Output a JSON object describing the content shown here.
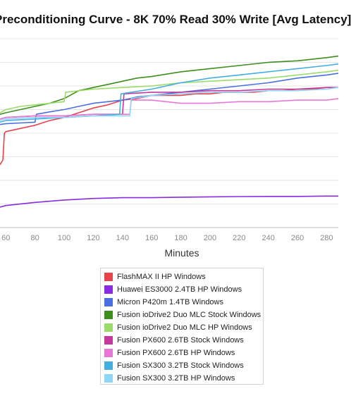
{
  "chart_data": {
    "type": "line",
    "title": "Preconditioning Curve - 8K 70% Read 30% Write [Avg Latency]",
    "xlabel": "Minutes",
    "ylabel": "",
    "xlim": [
      56,
      288
    ],
    "x_ticks": [
      60,
      80,
      100,
      120,
      140,
      160,
      180,
      200,
      220,
      240,
      260,
      280
    ],
    "x_tick_labels": [
      "60",
      "80",
      "100",
      "120",
      "140",
      "160",
      "180",
      "200",
      "220",
      "240",
      "260",
      "280"
    ],
    "grid": "horizontal",
    "legend_position": "bottom-center",
    "series": [
      {
        "name": "FlashMAX II HP Windows",
        "color": "#e8424b",
        "x": [
          56,
          58,
          59,
          60,
          70,
          80,
          90,
          100,
          110,
          120,
          130,
          140,
          150,
          160,
          170,
          180,
          190,
          200,
          210,
          220,
          230,
          240,
          250,
          260,
          270,
          280,
          288
        ],
        "y": [
          0.4,
          0.43,
          0.6,
          0.61,
          0.63,
          0.65,
          0.68,
          0.7,
          0.73,
          0.76,
          0.78,
          0.81,
          0.82,
          0.84,
          0.84,
          0.84,
          0.85,
          0.85,
          0.86,
          0.86,
          0.86,
          0.87,
          0.87,
          0.88,
          0.88,
          0.89,
          0.89
        ]
      },
      {
        "name": "Huawei ES3000 2.4TB HP Windows",
        "color": "#8a2be2",
        "x": [
          56,
          60,
          80,
          100,
          120,
          140,
          160,
          180,
          200,
          220,
          240,
          260,
          280,
          288
        ],
        "y": [
          0.13,
          0.14,
          0.16,
          0.175,
          0.185,
          0.19,
          0.19,
          0.193,
          0.195,
          0.197,
          0.198,
          0.198,
          0.2,
          0.2
        ]
      },
      {
        "name": "Micron P420m 1.4TB Windows",
        "color": "#4a6fe3",
        "x": [
          56,
          60,
          70,
          80,
          81,
          90,
          100,
          110,
          120,
          130,
          140,
          150,
          160,
          180,
          200,
          220,
          240,
          260,
          280,
          288
        ],
        "y": [
          0.655,
          0.66,
          0.665,
          0.67,
          0.72,
          0.735,
          0.75,
          0.77,
          0.79,
          0.8,
          0.81,
          0.83,
          0.84,
          0.86,
          0.88,
          0.9,
          0.92,
          0.95,
          0.97,
          0.98
        ]
      },
      {
        "name": "Fusion ioDrive2 Duo MLC Stock Windows",
        "color": "#3c8f1e",
        "x": [
          56,
          60,
          70,
          80,
          90,
          100,
          110,
          120,
          130,
          140,
          150,
          160,
          180,
          200,
          220,
          240,
          260,
          280,
          288
        ],
        "y": [
          0.72,
          0.73,
          0.75,
          0.77,
          0.79,
          0.82,
          0.87,
          0.89,
          0.91,
          0.93,
          0.95,
          0.96,
          0.99,
          1.01,
          1.03,
          1.05,
          1.06,
          1.08,
          1.09
        ]
      },
      {
        "name": "Fusion ioDrive2 Duo MLC HP Windows",
        "color": "#9bdb6a",
        "x": [
          56,
          60,
          70,
          80,
          100,
          101,
          120,
          140,
          160,
          180,
          200,
          220,
          240,
          260,
          280,
          288
        ],
        "y": [
          0.73,
          0.75,
          0.77,
          0.78,
          0.8,
          0.86,
          0.88,
          0.89,
          0.9,
          0.92,
          0.93,
          0.94,
          0.95,
          0.97,
          0.99,
          1.0
        ]
      },
      {
        "name": "Fusion PX600 2.6TB Stock Windows",
        "color": "#c4399b",
        "x": [
          56,
          60,
          80,
          100,
          120,
          140,
          141,
          160,
          180,
          200,
          220,
          240,
          260,
          280,
          288
        ],
        "y": [
          0.69,
          0.7,
          0.71,
          0.71,
          0.72,
          0.72,
          0.85,
          0.86,
          0.86,
          0.87,
          0.87,
          0.88,
          0.88,
          0.89,
          0.89
        ]
      },
      {
        "name": "Fusion PX600 2.6TB HP Windows",
        "color": "#e877d6",
        "x": [
          56,
          60,
          80,
          100,
          120,
          140,
          145,
          146,
          160,
          180,
          200,
          220,
          240,
          260,
          280,
          288
        ],
        "y": [
          0.69,
          0.7,
          0.71,
          0.71,
          0.72,
          0.72,
          0.72,
          0.81,
          0.81,
          0.79,
          0.79,
          0.8,
          0.8,
          0.81,
          0.81,
          0.82
        ]
      },
      {
        "name": "Fusion SX300 3.2TB Stock Windows",
        "color": "#45aee0",
        "x": [
          56,
          60,
          80,
          100,
          120,
          138,
          139,
          160,
          180,
          200,
          220,
          240,
          260,
          280,
          288
        ],
        "y": [
          0.67,
          0.68,
          0.69,
          0.7,
          0.71,
          0.72,
          0.85,
          0.88,
          0.92,
          0.95,
          0.97,
          0.99,
          1.01,
          1.03,
          1.04
        ]
      },
      {
        "name": "Fusion SX300 3.2TB HP Windows",
        "color": "#8fd6f4",
        "x": [
          56,
          60,
          80,
          100,
          120,
          140,
          145,
          146,
          160,
          180,
          200,
          220,
          240,
          260,
          280,
          288
        ],
        "y": [
          0.68,
          0.69,
          0.7,
          0.7,
          0.71,
          0.71,
          0.71,
          0.82,
          0.84,
          0.85,
          0.86,
          0.86,
          0.87,
          0.87,
          0.88,
          0.89
        ]
      }
    ]
  }
}
